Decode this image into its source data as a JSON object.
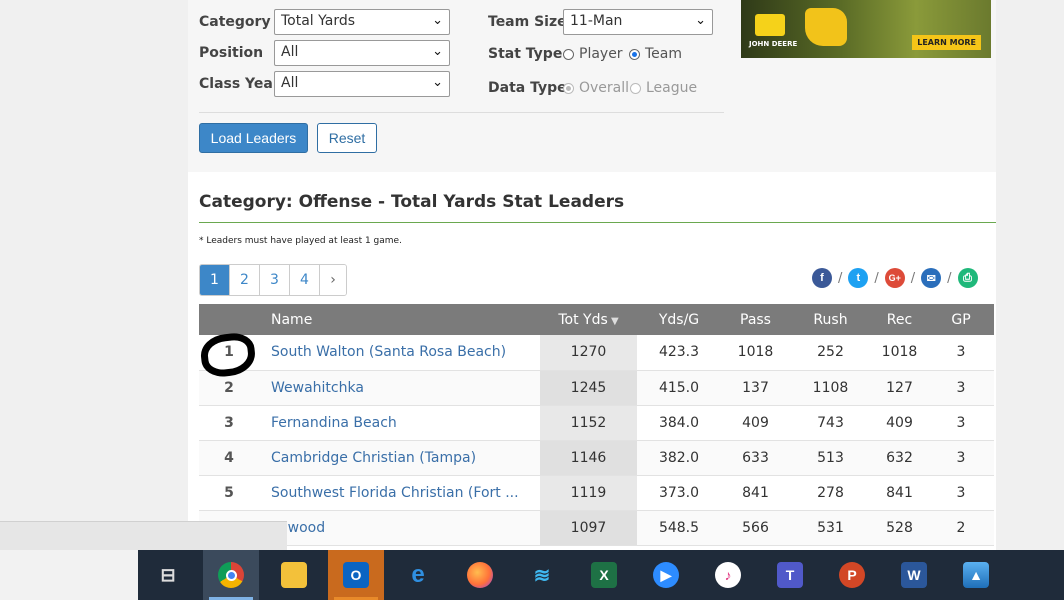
{
  "filters": {
    "category_label": "Category",
    "category_value": "Total Yards",
    "position_label": "Position",
    "position_value": "All",
    "class_year_label": "Class Year",
    "class_year_value": "All",
    "team_size_label": "Team Size",
    "team_size_value": "11-Man",
    "stat_type_label": "Stat Type",
    "stat_type_options": [
      "Player",
      "Team"
    ],
    "stat_type_selected": "Team",
    "data_type_label": "Data Type",
    "data_type_options": [
      "Overall",
      "League"
    ],
    "data_type_selected": "Overall"
  },
  "buttons": {
    "load": "Load Leaders",
    "reset": "Reset"
  },
  "ad": {
    "brand": "JOHN DEERE",
    "cta": "LEARN MORE"
  },
  "section_title": "Category: Offense - Total Yards Stat Leaders",
  "note": "* Leaders must have played at least 1 game.",
  "pagination": {
    "pages": [
      "1",
      "2",
      "3",
      "4"
    ],
    "next": "›",
    "active": "1"
  },
  "share": {
    "icons": [
      "facebook-icon",
      "twitter-icon",
      "google-plus-icon",
      "email-icon",
      "print-icon"
    ],
    "separator": "/"
  },
  "table": {
    "columns": [
      "",
      "Name",
      "Tot Yds",
      "Yds/G",
      "Pass",
      "Rush",
      "Rec",
      "GP"
    ],
    "sort_column": "Tot Yds",
    "rows": [
      {
        "rank": "1",
        "name": "South Walton (Santa Rosa Beach)",
        "tot": "1270",
        "ydsg": "423.3",
        "pass": "1018",
        "rush": "252",
        "rec": "1018",
        "gp": "3"
      },
      {
        "rank": "2",
        "name": "Wewahitchka",
        "tot": "1245",
        "ydsg": "415.0",
        "pass": "137",
        "rush": "1108",
        "rec": "127",
        "gp": "3"
      },
      {
        "rank": "3",
        "name": "Fernandina Beach",
        "tot": "1152",
        "ydsg": "384.0",
        "pass": "409",
        "rush": "743",
        "rec": "409",
        "gp": "3"
      },
      {
        "rank": "4",
        "name": "Cambridge Christian (Tampa)",
        "tot": "1146",
        "ydsg": "382.0",
        "pass": "633",
        "rush": "513",
        "rec": "632",
        "gp": "3"
      },
      {
        "rank": "5",
        "name": "Southwest Florida Christian (Fort ...",
        "tot": "1119",
        "ydsg": "373.0",
        "pass": "841",
        "rush": "278",
        "rec": "841",
        "gp": "3"
      },
      {
        "rank": "",
        "name": "ildwood",
        "tot": "1097",
        "ydsg": "548.5",
        "pass": "566",
        "rush": "531",
        "rec": "528",
        "gp": "2"
      }
    ]
  },
  "taskbar": {
    "apps": [
      "task-view",
      "chrome",
      "file-explorer",
      "outlook",
      "edge",
      "firefox",
      "wifi",
      "excel",
      "zoom",
      "itunes",
      "teams",
      "powerpoint",
      "word",
      "photos"
    ]
  }
}
